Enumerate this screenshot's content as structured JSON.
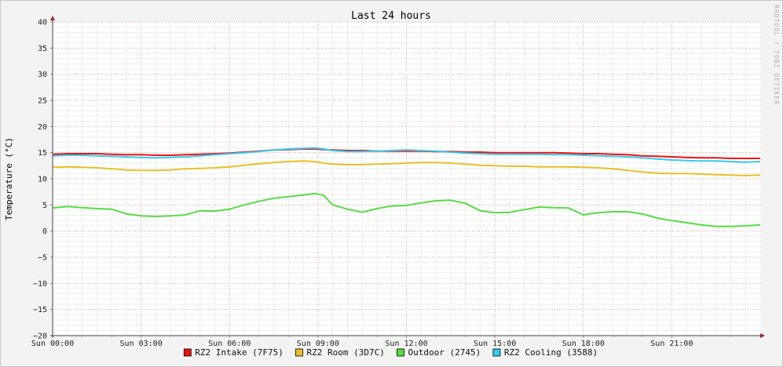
{
  "chart_data": {
    "type": "line",
    "title": "Last 24 hours",
    "ylabel": "Temperature (°C)",
    "xlabel": "",
    "watermark": "RRDTOOL / TOBI OETIKER",
    "ylim": [
      -20,
      40
    ],
    "yticks": [
      40,
      35,
      30,
      25,
      20,
      15,
      10,
      5,
      0,
      -5,
      -10,
      -15,
      -20
    ],
    "xlim": [
      0,
      24
    ],
    "xticks": [
      {
        "x": 0,
        "label": "Sun 00:00"
      },
      {
        "x": 3,
        "label": "Sun 03:00"
      },
      {
        "x": 6,
        "label": "Sun 06:00"
      },
      {
        "x": 9,
        "label": "Sun 09:00"
      },
      {
        "x": 12,
        "label": "Sun 12:00"
      },
      {
        "x": 15,
        "label": "Sun 15:00"
      },
      {
        "x": 18,
        "label": "Sun 18:00"
      },
      {
        "x": 21,
        "label": "Sun 21:00"
      }
    ],
    "grid": true,
    "legend_position": "bottom",
    "x": [
      0,
      0.5,
      1,
      1.5,
      2,
      2.5,
      3,
      3.5,
      4,
      4.5,
      5,
      5.5,
      6,
      6.5,
      7,
      7.5,
      8,
      8.5,
      8.9,
      9.2,
      9.5,
      10,
      10.5,
      11,
      11.5,
      12,
      12.5,
      13,
      13.5,
      14,
      14.5,
      15,
      15.5,
      16,
      16.5,
      17,
      17.5,
      18,
      18.5,
      19,
      19.5,
      20,
      20.5,
      21,
      21.5,
      22,
      22.5,
      23,
      23.5,
      24
    ],
    "series": [
      {
        "name": "RZ2 Intake (7F75)",
        "color": "#ee1111",
        "values": [
          14.7,
          14.8,
          14.8,
          14.8,
          14.7,
          14.6,
          14.6,
          14.5,
          14.5,
          14.6,
          14.7,
          14.8,
          14.9,
          15.1,
          15.3,
          15.5,
          15.6,
          15.7,
          15.7,
          15.6,
          15.5,
          15.4,
          15.4,
          15.3,
          15.3,
          15.3,
          15.3,
          15.2,
          15.2,
          15.1,
          15.1,
          15.0,
          15.0,
          15.0,
          15.0,
          15.0,
          14.9,
          14.8,
          14.8,
          14.7,
          14.6,
          14.4,
          14.3,
          14.2,
          14.1,
          14.0,
          14.0,
          13.9,
          13.9,
          13.9
        ]
      },
      {
        "name": "RZ2 Room (3D7C)",
        "color": "#e8c028",
        "values": [
          12.2,
          12.3,
          12.2,
          12.1,
          11.9,
          11.7,
          11.6,
          11.6,
          11.7,
          11.9,
          12.0,
          12.1,
          12.3,
          12.6,
          12.9,
          13.1,
          13.3,
          13.4,
          13.3,
          13.0,
          12.8,
          12.7,
          12.7,
          12.8,
          12.9,
          13.0,
          13.1,
          13.1,
          13.0,
          12.8,
          12.6,
          12.5,
          12.4,
          12.4,
          12.3,
          12.3,
          12.3,
          12.2,
          12.1,
          11.9,
          11.6,
          11.3,
          11.1,
          11.0,
          11.0,
          10.9,
          10.8,
          10.7,
          10.6,
          10.7
        ]
      },
      {
        "name": "Outdoor (2745)",
        "color": "#55dd44",
        "values": [
          4.4,
          4.7,
          4.5,
          4.3,
          4.2,
          3.3,
          2.9,
          2.8,
          2.9,
          3.1,
          3.9,
          3.8,
          4.2,
          5.0,
          5.7,
          6.3,
          6.6,
          6.9,
          7.2,
          6.8,
          5.0,
          4.2,
          3.6,
          4.3,
          4.8,
          4.9,
          5.4,
          5.8,
          5.9,
          5.3,
          3.9,
          3.5,
          3.6,
          4.1,
          4.6,
          4.5,
          4.4,
          3.1,
          3.5,
          3.7,
          3.7,
          3.3,
          2.5,
          2.0,
          1.6,
          1.2,
          0.9,
          0.9,
          1.0,
          1.2
        ]
      },
      {
        "name": "RZ2 Cooling (3588)",
        "color": "#33ccee",
        "values": [
          14.4,
          14.5,
          14.5,
          14.4,
          14.3,
          14.2,
          14.1,
          14.0,
          14.1,
          14.2,
          14.4,
          14.6,
          14.8,
          15.0,
          15.2,
          15.5,
          15.7,
          15.8,
          15.9,
          15.7,
          15.4,
          15.2,
          15.2,
          15.3,
          15.4,
          15.5,
          15.4,
          15.3,
          15.1,
          14.9,
          14.8,
          14.7,
          14.7,
          14.7,
          14.7,
          14.6,
          14.6,
          14.5,
          14.4,
          14.3,
          14.2,
          14.0,
          13.8,
          13.6,
          13.5,
          13.4,
          13.4,
          13.3,
          13.2,
          13.3
        ]
      }
    ]
  }
}
